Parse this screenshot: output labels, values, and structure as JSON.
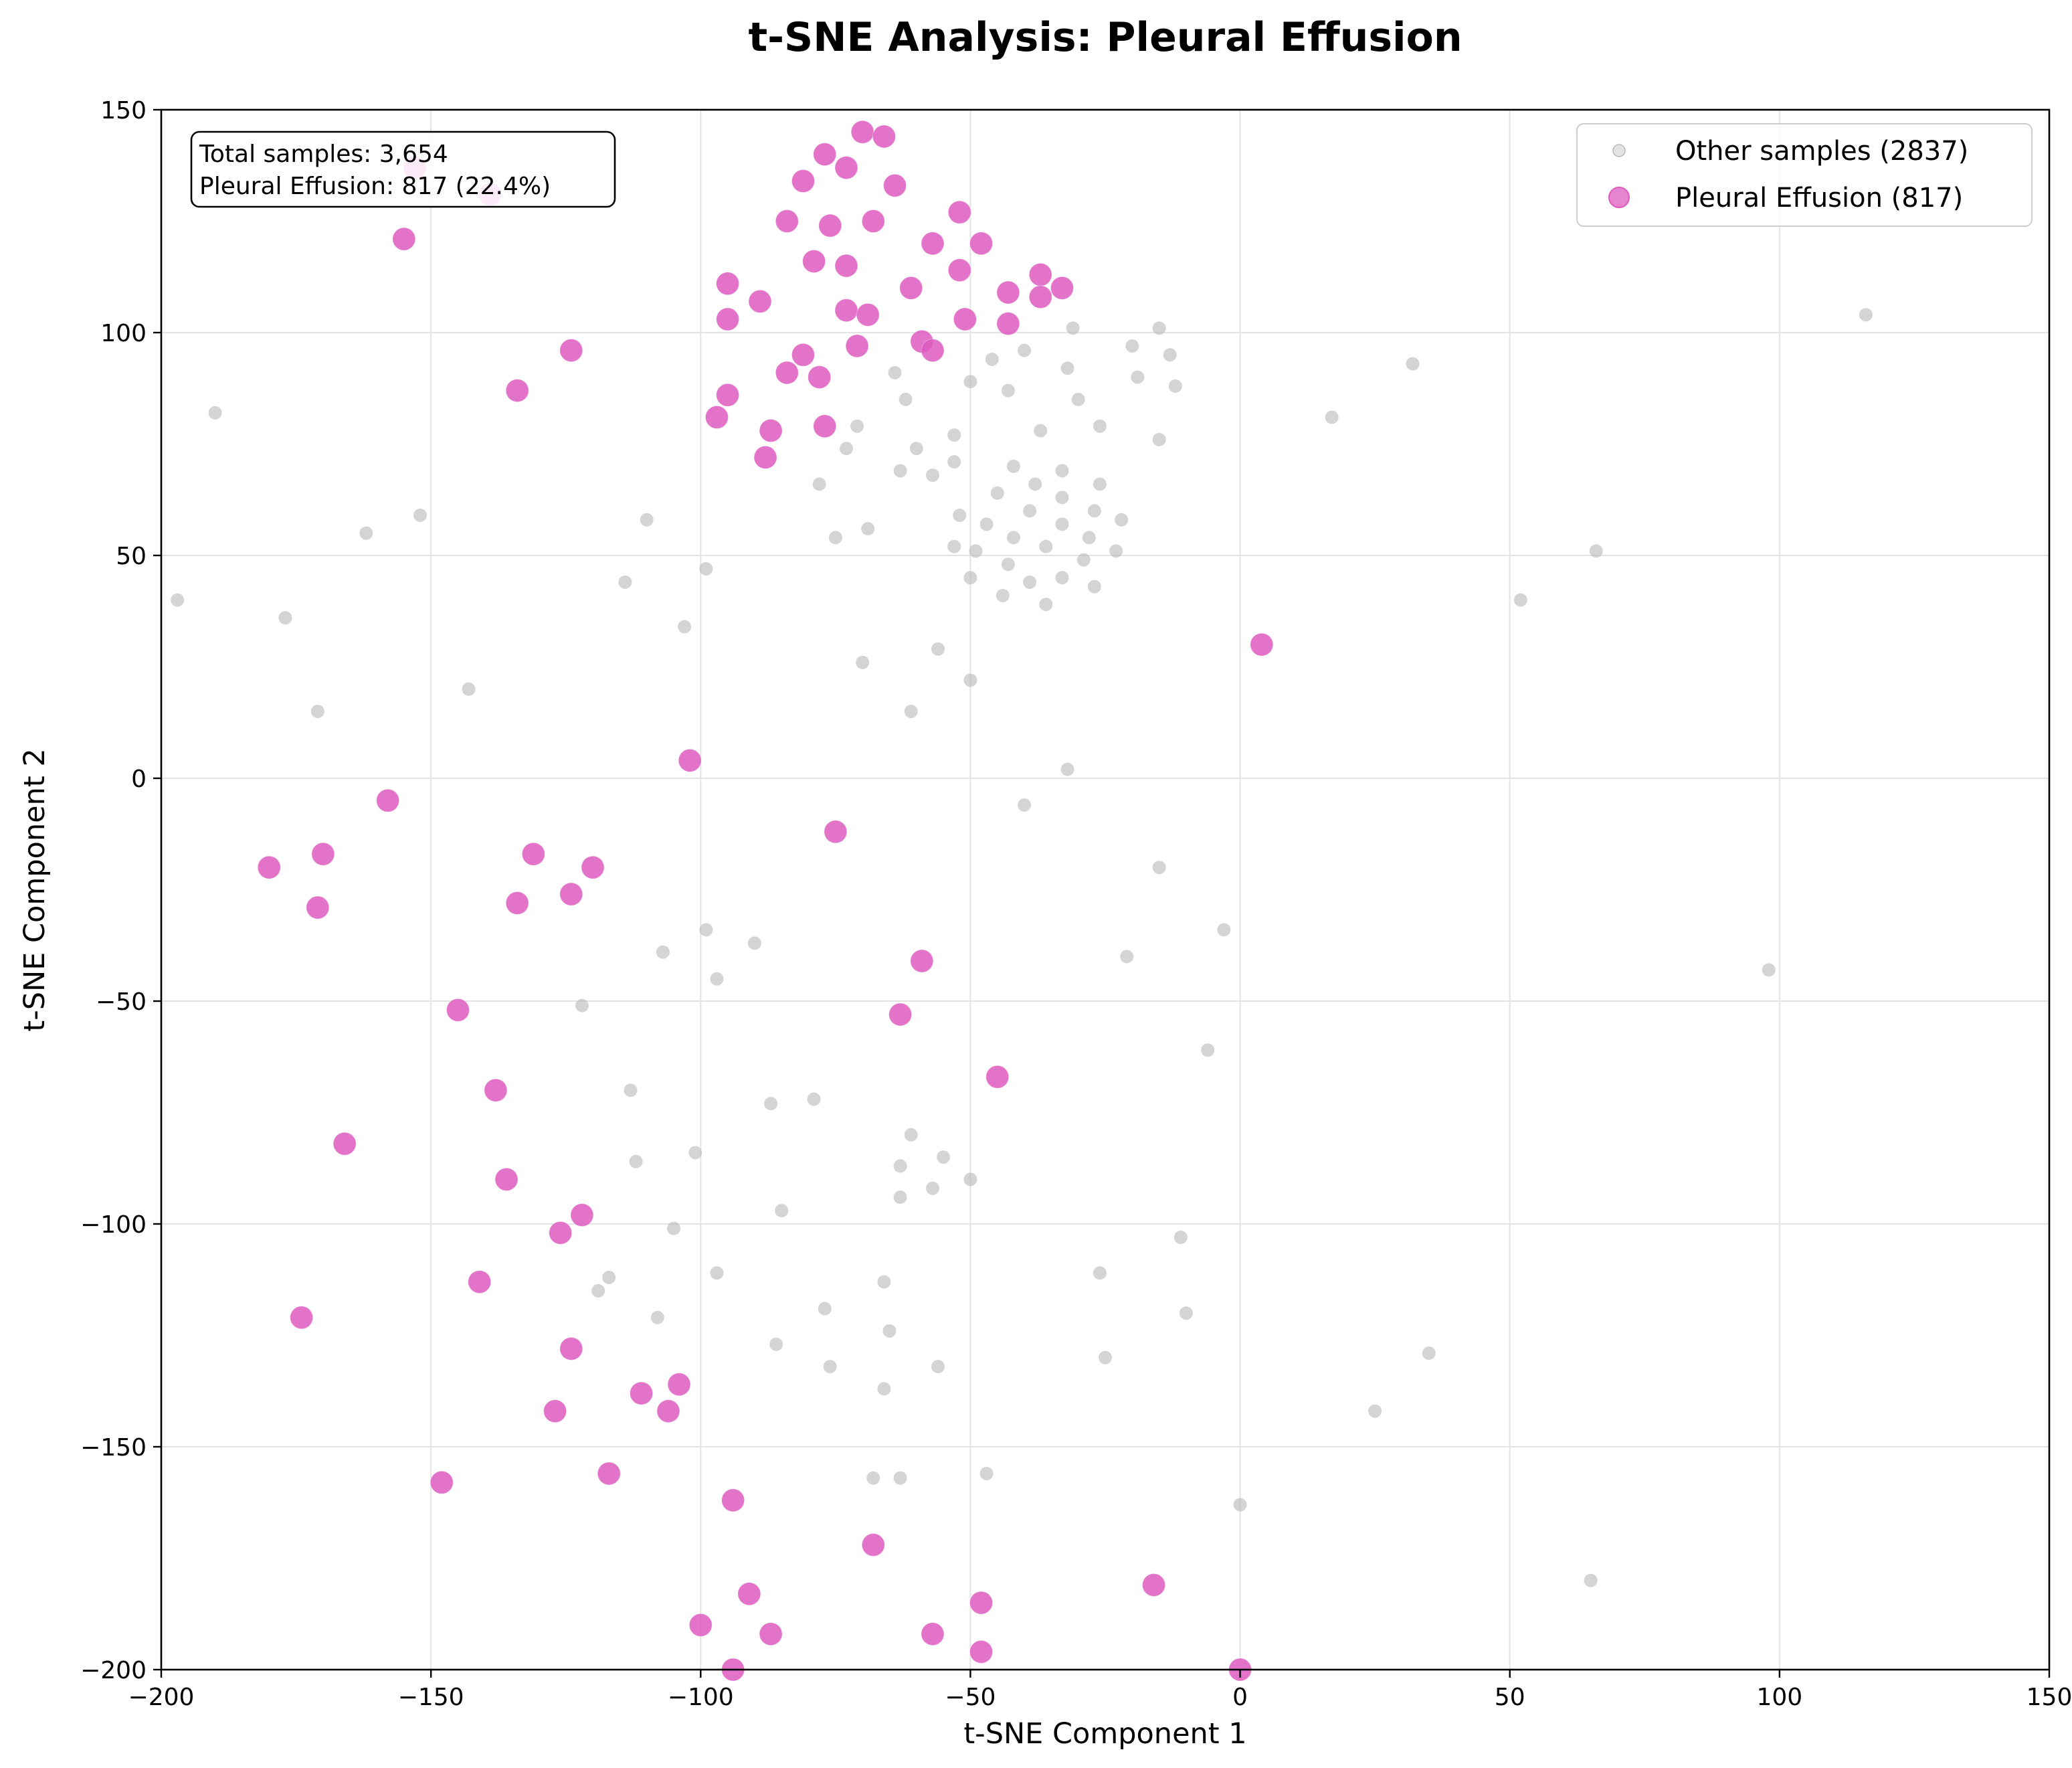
{
  "chart_data": {
    "type": "scatter",
    "title": "t-SNE Analysis: Pleural Effusion",
    "xlabel": "t-SNE Component 1",
    "ylabel": "t-SNE Component 2",
    "xlim": [
      -200,
      150
    ],
    "ylim": [
      -200,
      150
    ],
    "xticks": [
      -200,
      -150,
      -100,
      -50,
      0,
      50,
      100,
      150
    ],
    "yticks": [
      -200,
      -150,
      -100,
      -50,
      0,
      50,
      100,
      150
    ],
    "xtick_labels": [
      "−200",
      "−150",
      "−100",
      "−50",
      "0",
      "50",
      "100",
      "150"
    ],
    "ytick_labels": [
      "−200",
      "−150",
      "−100",
      "−50",
      "0",
      "50",
      "100",
      "150"
    ],
    "grid": true,
    "legend_position": "top-right",
    "info_box": {
      "line1": "Total samples: 3,654",
      "line2": "Pleural Effusion: 817 (22.4%)"
    },
    "series": [
      {
        "name": "Other samples (2837)",
        "color": "#b8b8b8",
        "points": [
          [
            -190,
            82
          ],
          [
            -197,
            40
          ],
          [
            -177,
            36
          ],
          [
            -171,
            15
          ],
          [
            -162,
            55
          ],
          [
            -152,
            59
          ],
          [
            -143,
            20
          ],
          [
            -114,
            44
          ],
          [
            -110,
            58
          ],
          [
            -99,
            47
          ],
          [
            -103,
            34
          ],
          [
            -78,
            66
          ],
          [
            -75,
            54
          ],
          [
            -73,
            74
          ],
          [
            -71,
            79
          ],
          [
            -69,
            56
          ],
          [
            -70,
            26
          ],
          [
            -64,
            91
          ],
          [
            -63,
            69
          ],
          [
            -62,
            85
          ],
          [
            -60,
            74
          ],
          [
            -57,
            68
          ],
          [
            -56,
            29
          ],
          [
            -53,
            52
          ],
          [
            -53,
            77
          ],
          [
            -53,
            71
          ],
          [
            -52,
            59
          ],
          [
            -50,
            89
          ],
          [
            -50,
            45
          ],
          [
            -49,
            51
          ],
          [
            -47,
            57
          ],
          [
            -46,
            94
          ],
          [
            -45,
            64
          ],
          [
            -43,
            48
          ],
          [
            -43,
            87
          ],
          [
            -42,
            54
          ],
          [
            -42,
            70
          ],
          [
            -44,
            41
          ],
          [
            -40,
            96
          ],
          [
            -39,
            60
          ],
          [
            -39,
            44
          ],
          [
            -38,
            66
          ],
          [
            -37,
            78
          ],
          [
            -36,
            52
          ],
          [
            -36,
            39
          ],
          [
            -33,
            63
          ],
          [
            -33,
            57
          ],
          [
            -33,
            69
          ],
          [
            -33,
            45
          ],
          [
            -32,
            92
          ],
          [
            -31,
            101
          ],
          [
            -30,
            85
          ],
          [
            -29,
            49
          ],
          [
            -28,
            54
          ],
          [
            -27,
            60
          ],
          [
            -27,
            43
          ],
          [
            -26,
            79
          ],
          [
            -26,
            66
          ],
          [
            -23,
            51
          ],
          [
            -22,
            58
          ],
          [
            -20,
            97
          ],
          [
            -19,
            90
          ],
          [
            -15,
            76
          ],
          [
            -15,
            101
          ],
          [
            -13,
            95
          ],
          [
            -12,
            88
          ],
          [
            17,
            81
          ],
          [
            32,
            93
          ],
          [
            52,
            40
          ],
          [
            66,
            51
          ],
          [
            116,
            104
          ],
          [
            -50,
            22
          ],
          [
            -61,
            15
          ],
          [
            -32,
            2
          ],
          [
            -40,
            -6
          ],
          [
            -15,
            -20
          ],
          [
            -99,
            -34
          ],
          [
            -107,
            -39
          ],
          [
            -90,
            -37
          ],
          [
            -97,
            -45
          ],
          [
            -122,
            -51
          ],
          [
            -113,
            -70
          ],
          [
            -112,
            -86
          ],
          [
            -87,
            -73
          ],
          [
            -79,
            -72
          ],
          [
            -101,
            -84
          ],
          [
            -85,
            -97
          ],
          [
            -105,
            -101
          ],
          [
            -97,
            -111
          ],
          [
            -61,
            -80
          ],
          [
            -55,
            -85
          ],
          [
            -63,
            -87
          ],
          [
            -57,
            -92
          ],
          [
            -63,
            -94
          ],
          [
            -50,
            -90
          ],
          [
            -21,
            -40
          ],
          [
            -3,
            -34
          ],
          [
            -6,
            -61
          ],
          [
            -11,
            -103
          ],
          [
            -10,
            -120
          ],
          [
            -26,
            -111
          ],
          [
            -25,
            -130
          ],
          [
            -117,
            -112
          ],
          [
            -119,
            -115
          ],
          [
            -108,
            -121
          ],
          [
            -77,
            -119
          ],
          [
            -66,
            -113
          ],
          [
            -86,
            -127
          ],
          [
            -76,
            -132
          ],
          [
            -65,
            -124
          ],
          [
            -56,
            -132
          ],
          [
            -66,
            -137
          ],
          [
            -68,
            -157
          ],
          [
            -63,
            -157
          ],
          [
            -47,
            -156
          ],
          [
            0,
            -163
          ],
          [
            25,
            -142
          ],
          [
            35,
            -129
          ],
          [
            65,
            -180
          ],
          [
            98,
            -43
          ]
        ]
      },
      {
        "name": "Pleural Effusion (817)",
        "color": "#dd5bbf",
        "points": [
          [
            -70,
            145
          ],
          [
            -66,
            144
          ],
          [
            -77,
            140
          ],
          [
            -73,
            137
          ],
          [
            -81,
            134
          ],
          [
            -64,
            133
          ],
          [
            -153,
            137
          ],
          [
            -139,
            131
          ],
          [
            -52,
            127
          ],
          [
            -84,
            125
          ],
          [
            -76,
            124
          ],
          [
            -68,
            125
          ],
          [
            -155,
            121
          ],
          [
            -57,
            120
          ],
          [
            -48,
            120
          ],
          [
            -79,
            116
          ],
          [
            -73,
            115
          ],
          [
            -52,
            114
          ],
          [
            -37,
            113
          ],
          [
            -33,
            110
          ],
          [
            -95,
            111
          ],
          [
            -89,
            107
          ],
          [
            -61,
            110
          ],
          [
            -43,
            109
          ],
          [
            -37,
            108
          ],
          [
            -73,
            105
          ],
          [
            -69,
            104
          ],
          [
            -95,
            103
          ],
          [
            -51,
            103
          ],
          [
            -43,
            102
          ],
          [
            -124,
            96
          ],
          [
            -71,
            97
          ],
          [
            -81,
            95
          ],
          [
            -59,
            98
          ],
          [
            -57,
            96
          ],
          [
            -84,
            91
          ],
          [
            -78,
            90
          ],
          [
            -134,
            87
          ],
          [
            -95,
            86
          ],
          [
            -97,
            81
          ],
          [
            -77,
            79
          ],
          [
            -87,
            78
          ],
          [
            -88,
            72
          ],
          [
            4,
            30
          ],
          [
            -102,
            4
          ],
          [
            -158,
            -5
          ],
          [
            -75,
            -12
          ],
          [
            -170,
            -17
          ],
          [
            -131,
            -17
          ],
          [
            -180,
            -20
          ],
          [
            -120,
            -20
          ],
          [
            -124,
            -26
          ],
          [
            -171,
            -29
          ],
          [
            -134,
            -28
          ],
          [
            -59,
            -41
          ],
          [
            -145,
            -52
          ],
          [
            -63,
            -53
          ],
          [
            -45,
            -67
          ],
          [
            -138,
            -70
          ],
          [
            -166,
            -82
          ],
          [
            -136,
            -90
          ],
          [
            -122,
            -98
          ],
          [
            -126,
            -102
          ],
          [
            -141,
            -113
          ],
          [
            -174,
            -121
          ],
          [
            -124,
            -128
          ],
          [
            -111,
            -138
          ],
          [
            -104,
            -136
          ],
          [
            -127,
            -142
          ],
          [
            -106,
            -142
          ],
          [
            -148,
            -158
          ],
          [
            -117,
            -156
          ],
          [
            -94,
            -162
          ],
          [
            -68,
            -172
          ],
          [
            -16,
            -181
          ],
          [
            -91,
            -183
          ],
          [
            -48,
            -185
          ],
          [
            -100,
            -190
          ],
          [
            -87,
            -192
          ],
          [
            -57,
            -192
          ],
          [
            -48,
            -196
          ],
          [
            -94,
            -200
          ],
          [
            0,
            -200
          ]
        ]
      }
    ]
  }
}
